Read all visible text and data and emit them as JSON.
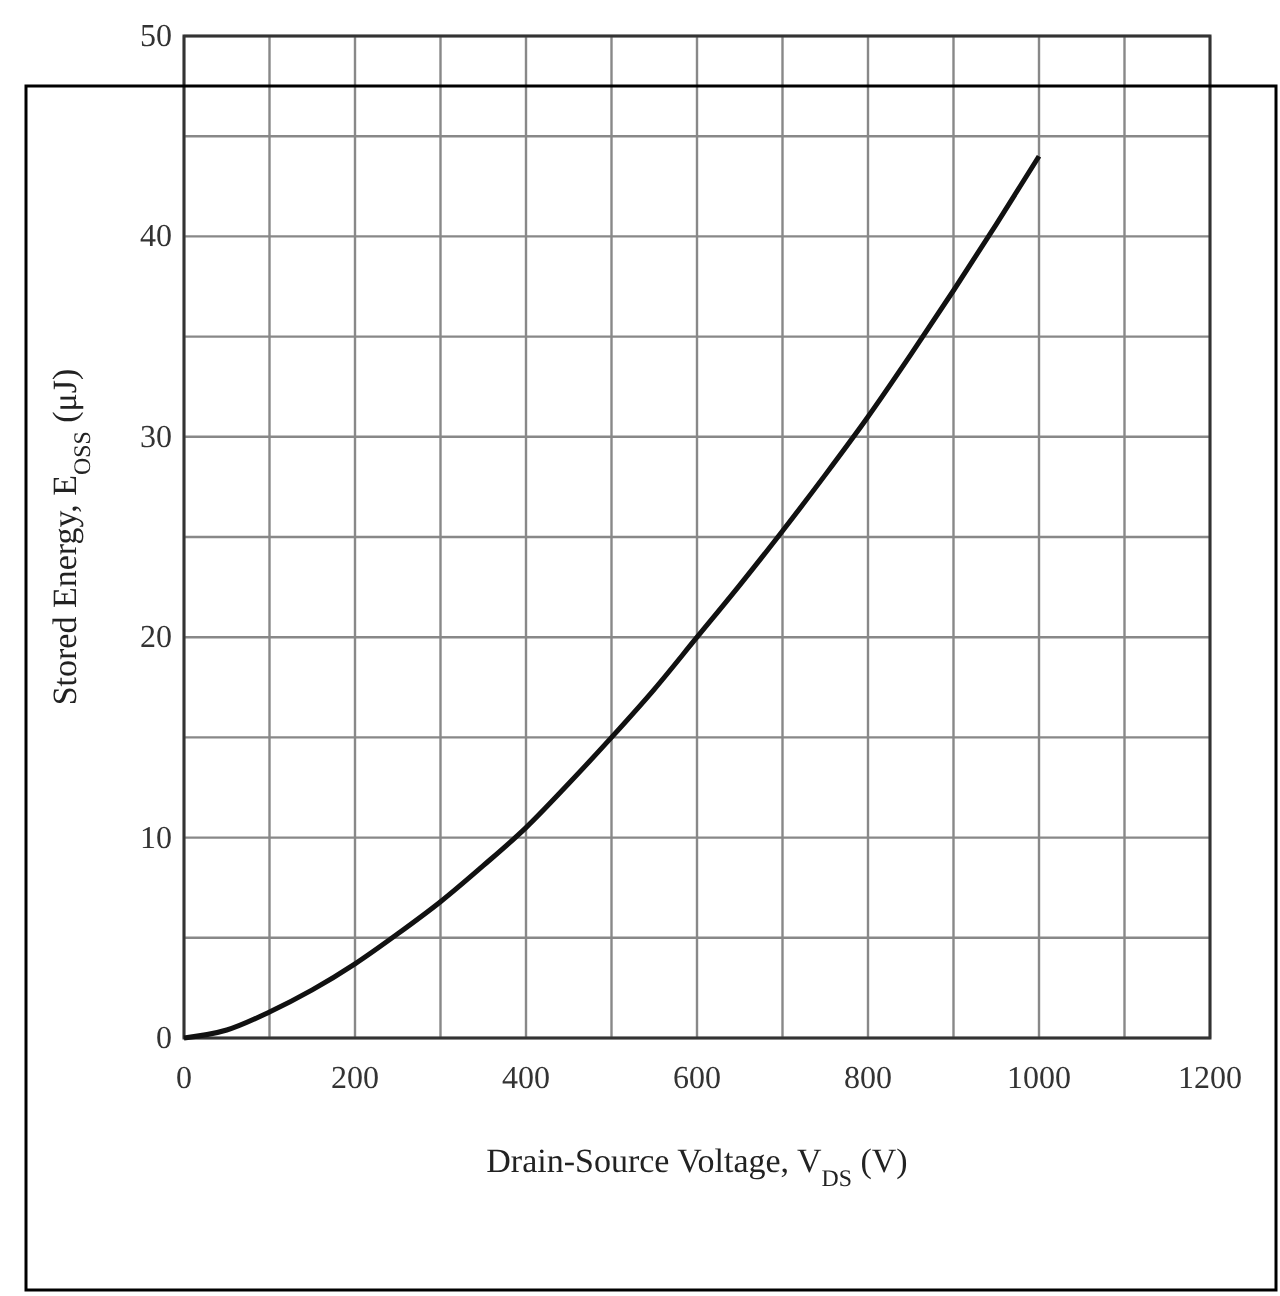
{
  "chart_data": {
    "type": "line",
    "xlabel": "Drain-Source Voltage, V$_{DS}$ (V)",
    "ylabel": "Stored Energy, E$_{OSS}$ (μJ)",
    "x": [
      0,
      50,
      100,
      150,
      200,
      250,
      300,
      350,
      400,
      450,
      500,
      550,
      600,
      650,
      700,
      750,
      800,
      850,
      900,
      950,
      1000
    ],
    "series": [
      {
        "color": "#111111",
        "values": [
          0,
          0.4,
          1.3,
          2.4,
          3.7,
          5.2,
          6.8,
          8.6,
          10.5,
          12.7,
          15,
          17.4,
          20,
          22.6,
          25.3,
          28.1,
          31,
          34.1,
          37.3,
          40.6,
          44
        ]
      }
    ],
    "xlim": [
      0,
      1200
    ],
    "ylim": [
      0,
      50
    ],
    "xticks": [
      0,
      {
        "value": 100,
        "label": null
      },
      200,
      {
        "value": 300,
        "label": null
      },
      400,
      {
        "value": 500,
        "label": null
      },
      600,
      {
        "value": 700,
        "label": null
      },
      800,
      {
        "value": 900,
        "label": null
      },
      1000,
      {
        "value": 1100,
        "label": null
      },
      1200
    ],
    "yticks": [
      0,
      {
        "value": 5,
        "label": null
      },
      10,
      {
        "value": 15,
        "label": null
      },
      20,
      {
        "value": 25,
        "label": null
      },
      30,
      {
        "value": 35,
        "label": null
      },
      40,
      {
        "value": 45,
        "label": null
      },
      50
    ],
    "grid": true,
    "marker": "none",
    "line_style": "solid"
  }
}
